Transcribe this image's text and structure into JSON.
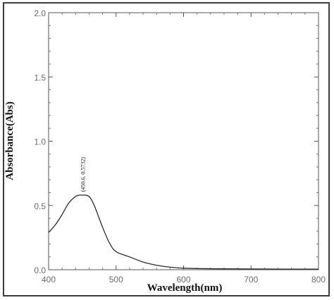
{
  "chart_data": {
    "type": "line",
    "xlabel": "Wavelength(nm)",
    "ylabel": "Absorbance(Abs)",
    "xlim": [
      400,
      800
    ],
    "ylim": [
      0.0,
      2.0
    ],
    "xticks": [
      "400",
      "500",
      "600",
      "700",
      "800"
    ],
    "yticks": [
      "0.0",
      "0.5",
      "1.0",
      "1.5",
      "2.0"
    ],
    "grid": false,
    "annotations": [
      {
        "text": "(450.6, 0.5732)",
        "x": 450.6,
        "y": 0.5732
      }
    ],
    "series": [
      {
        "x": [
          400,
          410,
          420,
          430,
          440,
          445,
          450,
          455,
          460,
          465,
          470,
          480,
          490,
          500,
          520,
          540,
          560,
          580,
          600,
          650,
          700,
          750,
          800
        ],
        "y": [
          0.29,
          0.35,
          0.43,
          0.52,
          0.57,
          0.58,
          0.58,
          0.58,
          0.57,
          0.53,
          0.47,
          0.33,
          0.21,
          0.14,
          0.1,
          0.06,
          0.035,
          0.02,
          0.012,
          0.007,
          0.006,
          0.005,
          0.005
        ]
      }
    ]
  }
}
